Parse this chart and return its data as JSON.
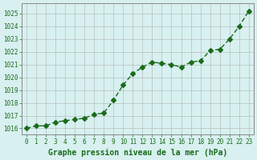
{
  "x": [
    0,
    1,
    2,
    3,
    4,
    5,
    6,
    7,
    8,
    9,
    10,
    11,
    12,
    13,
    14,
    15,
    16,
    17,
    18,
    19,
    20,
    21,
    22,
    23
  ],
  "y": [
    1016.0,
    1016.2,
    1016.2,
    1016.5,
    1016.6,
    1016.7,
    1016.8,
    1017.1,
    1017.2,
    1018.2,
    1019.4,
    1020.3,
    1020.8,
    1021.2,
    1021.1,
    1021.0,
    1020.8,
    1021.2,
    1021.3,
    1022.1,
    1022.2,
    1023.0,
    1024.0,
    1025.2
  ],
  "line_color": "#1a6b1a",
  "marker": "D",
  "markersize": 3,
  "bg_color": "#d8f0f0",
  "grid_color": "#aaaaaa",
  "xlabel": "Graphe pression niveau de la mer (hPa)",
  "xlabel_color": "#1a6b1a",
  "tick_color": "#1a6b1a",
  "ylim": [
    1015.5,
    1025.8
  ],
  "yticks": [
    1016,
    1017,
    1018,
    1019,
    1020,
    1021,
    1022,
    1023,
    1024,
    1025
  ],
  "xticks": [
    0,
    1,
    2,
    3,
    4,
    5,
    6,
    7,
    8,
    9,
    10,
    11,
    12,
    13,
    14,
    15,
    16,
    17,
    18,
    19,
    20,
    21,
    22,
    23
  ],
  "axis_bg": "#d8f0f0",
  "spine_color": "#888888"
}
